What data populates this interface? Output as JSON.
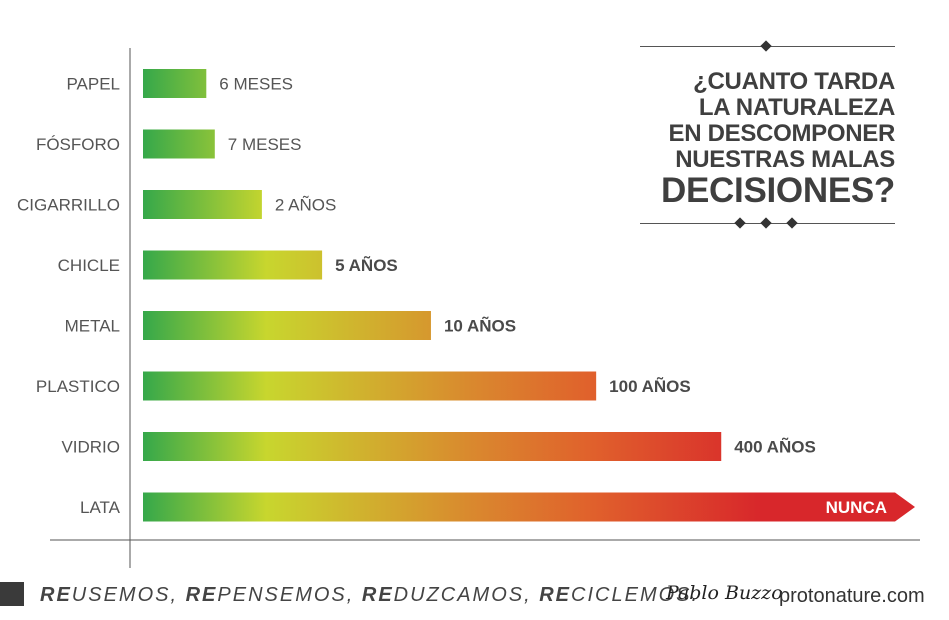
{
  "chart_data": {
    "type": "bar",
    "orientation": "horizontal",
    "categories": [
      "PAPEL",
      "FÓSFORO",
      "CIGARRILLO",
      "CHICLE",
      "METAL",
      "PLASTICO",
      "VIDRIO",
      "LATA"
    ],
    "value_labels": [
      "6 MESES",
      "7 MESES",
      "2 AÑOS",
      "5 AÑOS",
      "10 AÑOS",
      "100 AÑOS",
      "400 AÑOS",
      "NUNCA"
    ],
    "relative_lengths": [
      0.082,
      0.093,
      0.154,
      0.232,
      0.373,
      0.587,
      0.749,
      1.0
    ],
    "gradient_colors": [
      "#35a84a",
      "#c8d62e",
      "#d98a2e",
      "#e0612c",
      "#d8272b"
    ],
    "title_lines": [
      "¿CUANTO TARDA",
      "LA NATURALEZA",
      "EN DESCOMPONER",
      "NUESTRAS MALAS"
    ],
    "title_emphasis": "DECISIONES?",
    "xlabel": "",
    "ylabel": ""
  },
  "footer": {
    "slogan": [
      {
        "prefix": "RE",
        "rest": "USEMOS, "
      },
      {
        "prefix": "RE",
        "rest": "PENSEMOS, "
      },
      {
        "prefix": "RE",
        "rest": "DUZCAMOS, "
      },
      {
        "prefix": "RE",
        "rest": "CICLEMOS."
      }
    ],
    "signature": "Pablo Buzzo",
    "site": "protonature.com"
  }
}
